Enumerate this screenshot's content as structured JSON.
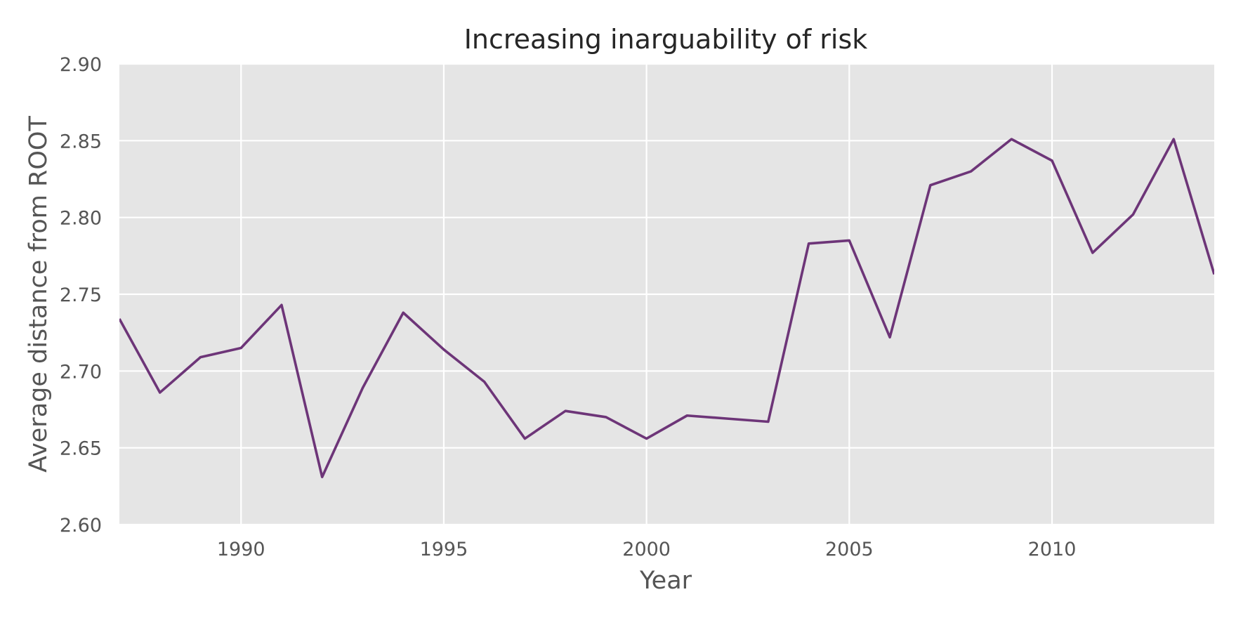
{
  "chart_data": {
    "type": "line",
    "title": "Increasing inarguability of risk",
    "xlabel": "Year",
    "ylabel": "Average distance from ROOT",
    "xlim": [
      1987,
      2014
    ],
    "ylim": [
      2.6,
      2.9
    ],
    "x_ticks": [
      1990,
      1995,
      2000,
      2005,
      2010
    ],
    "x_tick_labels": [
      "1990",
      "1995",
      "2000",
      "2005",
      "2010"
    ],
    "y_ticks": [
      2.6,
      2.65,
      2.7,
      2.75,
      2.8,
      2.85,
      2.9
    ],
    "y_tick_labels": [
      "2.60",
      "2.65",
      "2.70",
      "2.75",
      "2.80",
      "2.85",
      "2.90"
    ],
    "grid": true,
    "colors": {
      "plot_background": "#e5e5e5",
      "grid": "#ffffff",
      "line": "#6d3578"
    },
    "series": [
      {
        "x": [
          1987,
          1988,
          1989,
          1990,
          1991,
          1992,
          1993,
          1994,
          1995,
          1996,
          1997,
          1998,
          1999,
          2000,
          2001,
          2002,
          2003,
          2004,
          2005,
          2006,
          2007,
          2008,
          2009,
          2010,
          2011,
          2012,
          2013,
          2014
        ],
        "values": [
          2.734,
          2.686,
          2.709,
          2.715,
          2.743,
          2.631,
          2.689,
          2.738,
          2.714,
          2.693,
          2.656,
          2.674,
          2.67,
          2.656,
          2.671,
          2.669,
          2.667,
          2.783,
          2.785,
          2.722,
          2.821,
          2.83,
          2.851,
          2.837,
          2.777,
          2.802,
          2.851,
          2.763
        ]
      }
    ]
  }
}
